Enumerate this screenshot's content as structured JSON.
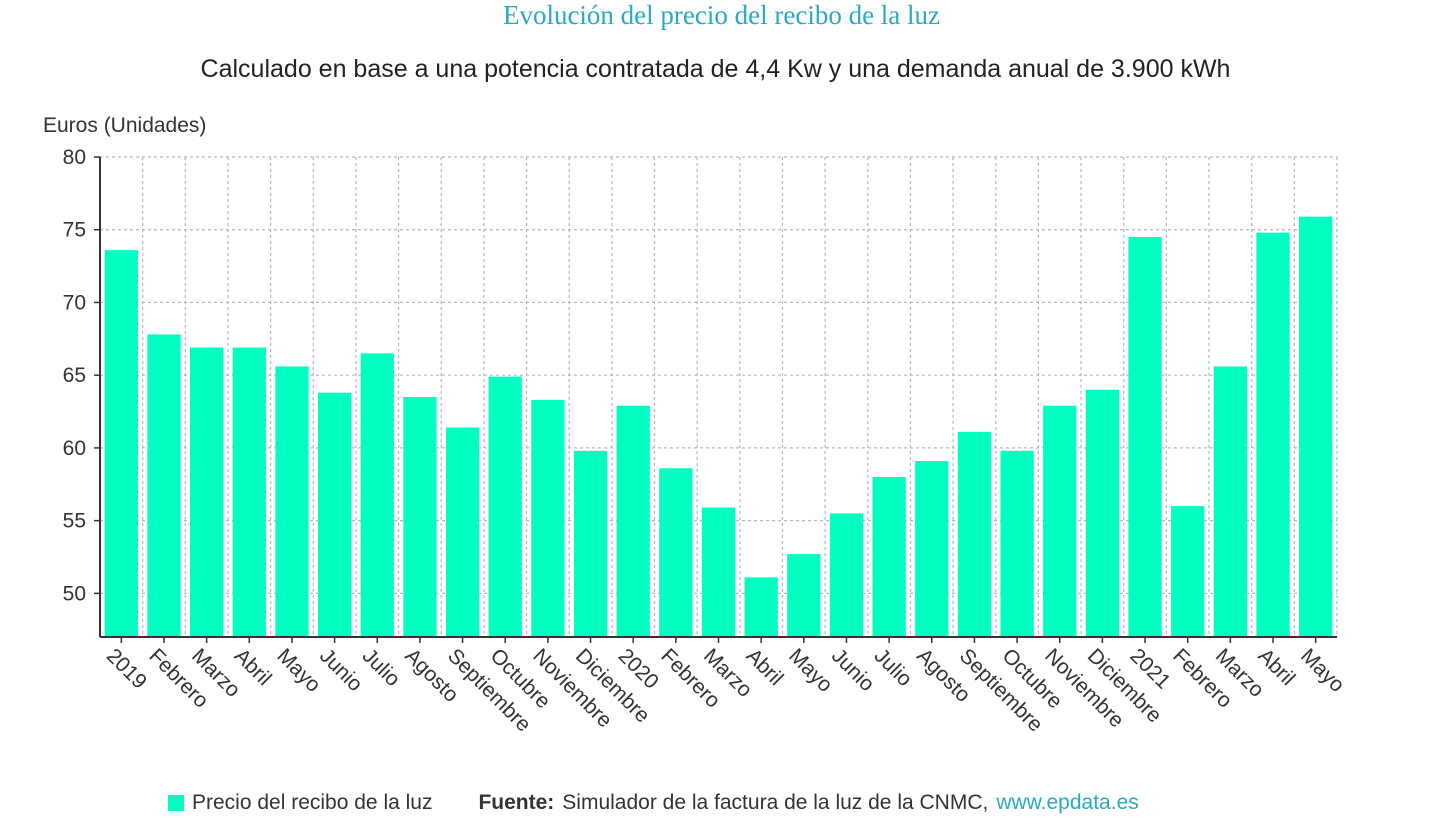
{
  "chart_data": {
    "type": "bar",
    "title": "Evolución del precio del recibo de la luz",
    "subtitle": "Calculado en base a una potencia contratada de 4,4 Kw y una demanda anual de 3.900 kWh",
    "ylabel": "Euros (Unidades)",
    "xlabel": "",
    "ylim": [
      47,
      80
    ],
    "yticks": [
      50,
      55,
      60,
      65,
      70,
      75,
      80
    ],
    "grid": true,
    "bar_color": "#00ffc0",
    "categories": [
      "2019",
      "Febrero",
      "Marzo",
      "Abril",
      "Mayo",
      "Junio",
      "Julio",
      "Agosto",
      "Septiembre",
      "Octubre",
      "Noviembre",
      "Diciembre",
      "2020",
      "Febrero",
      "Marzo",
      "Abril",
      "Mayo",
      "Junio",
      "Julio",
      "Agosto",
      "Septiembre",
      "Octubre",
      "Noviembre",
      "Diciembre",
      "2021",
      "Febrero",
      "Marzo",
      "Abril",
      "Mayo"
    ],
    "series": [
      {
        "name": "Precio del recibo de la luz",
        "values": [
          73.6,
          67.8,
          66.9,
          66.9,
          65.6,
          63.8,
          66.5,
          63.5,
          61.4,
          64.9,
          63.3,
          59.8,
          62.9,
          58.6,
          55.9,
          51.1,
          52.7,
          55.5,
          58.0,
          59.1,
          61.1,
          59.8,
          62.9,
          64.0,
          74.5,
          56.0,
          65.6,
          74.8,
          75.9
        ]
      }
    ]
  },
  "legend": {
    "label": "Precio del recibo de la luz"
  },
  "source": {
    "prefix": "Fuente:",
    "text": "Simulador de la factura de la luz de la CNMC,",
    "link": "www.epdata.es"
  }
}
